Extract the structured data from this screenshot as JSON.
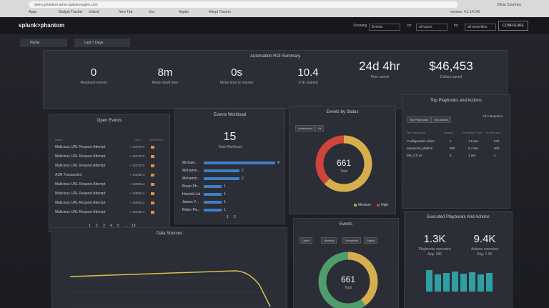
{
  "browser": {
    "address": "demo.phantom.amer.splunkoxygen.com",
    "bookmarks": [
      "Apps",
      "Budget Tracker",
      "Unbxd",
      "New Tab",
      "Jira",
      "Apptio",
      "Adopt Tracker"
    ],
    "version": "version: 4.1.14142",
    "user": "Olivia Courtney"
  },
  "header": {
    "logo": "splunk>phantom",
    "showing": "Showing",
    "events": "Events",
    "for_users": "for",
    "users": "all users",
    "for_severities": "for",
    "severities": "all severities",
    "configure": "CONFIGURE"
  },
  "toolbar": {
    "home": "Home",
    "range": "Last 7 Days"
  },
  "roi": {
    "title": "Automation ROI Summary",
    "metrics": [
      {
        "value": "0",
        "label": "Resolved events"
      },
      {
        "value": "8m",
        "label": "Mean dwell time"
      },
      {
        "value": "0s",
        "label": "Mean time to resolve"
      },
      {
        "value": "10.4",
        "label": "FTE Gained"
      },
      {
        "value": "24d 4hr",
        "label": "Time saved"
      },
      {
        "value": "$46,453",
        "label": "Dollars saved"
      }
    ]
  },
  "open_events": {
    "title": "Open Events",
    "columns": [
      "Name",
      "SLA",
      "SEVERITY"
    ],
    "rows": [
      {
        "name": "Malicious URL Request Attempt",
        "sla": "+ 1407074"
      },
      {
        "name": "Malicious URL Request Attempt",
        "sla": "+ 1407073"
      },
      {
        "name": "Malicious URL Request Attempt",
        "sla": "+ 1407073"
      },
      {
        "name": "ASN Transaction",
        "sla": "+ 1410573"
      },
      {
        "name": "Malicious URL Request Attempt",
        "sla": "+ 1390014"
      },
      {
        "name": "Malicious URL Request Attempt",
        "sla": "+ 1390014"
      },
      {
        "name": "Malicious URL Request Attempt",
        "sla": "+ 1390014"
      },
      {
        "name": "Malicious URL Request Attempt",
        "sla": "+ 1334574"
      }
    ],
    "pages": [
      "1",
      "2",
      "3",
      "4",
      "5",
      "...",
      "13"
    ]
  },
  "workload": {
    "title": "Events Workload",
    "total": "15",
    "total_label": "Total Workload",
    "rows": [
      {
        "name": "Michael...",
        "count": 4
      },
      {
        "name": "Mohamm...",
        "count": 2
      },
      {
        "name": "Mohamm...",
        "count": 2
      },
      {
        "name": "Bryan Ph...",
        "count": 1
      },
      {
        "name": "Henrick Lal",
        "count": 1
      },
      {
        "name": "James Y...",
        "count": 1
      },
      {
        "name": "Robin Pe...",
        "count": 1
      }
    ],
    "pages": [
      "1",
      "2"
    ]
  },
  "status": {
    "title": "Events by Status",
    "tabs": [
      "Unresolved",
      "All"
    ],
    "total": "661",
    "total_label": "Total",
    "legend": [
      "Medium",
      "High"
    ]
  },
  "playbooks": {
    "title": "Top Playbooks and Actions",
    "tabs": [
      "Top Playbooks",
      "Top Actions"
    ],
    "filter": "All Categories",
    "columns": [
      "Top Playbooks",
      "Actions",
      "Execution Time",
      "% Executed"
    ],
    "rows": [
      [
        "Configuration Chan",
        "1",
        "1.8 sec",
        "572"
      ],
      [
        "advanced_phishin",
        "600",
        "0.4 sec",
        "600"
      ],
      [
        "MS_CS vx",
        "8",
        "1 sec",
        "4"
      ]
    ]
  },
  "sources": {
    "title": "Data Sources"
  },
  "events": {
    "title": "Events",
    "tabs": [
      "Label",
      "Severity",
      "Sensitivity",
      "Status"
    ],
    "total": "661",
    "total_label": "Total"
  },
  "executed": {
    "title": "Executed Playbooks And Actions",
    "items": [
      {
        "value": "1.3K",
        "label": "Playbooks executed",
        "avg": "Avg. 186"
      },
      {
        "value": "9.4K",
        "label": "Actions executed",
        "avg": "Avg. 1.3K"
      }
    ]
  }
}
